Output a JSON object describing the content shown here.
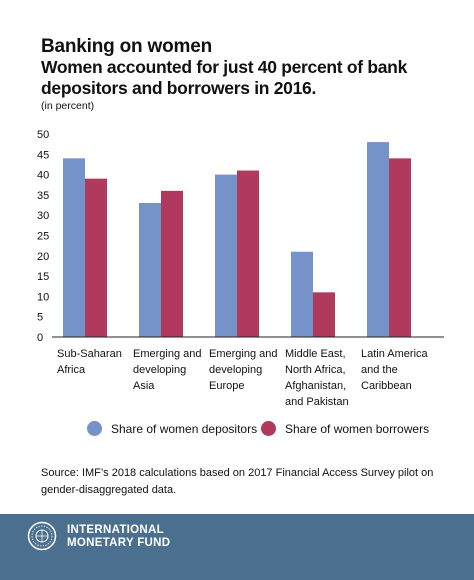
{
  "title": "Banking on women",
  "subtitle": "Women accounted for just 40 percent of bank depositors and borrowers in 2016.",
  "unit_note": "(in percent)",
  "colors": {
    "depositors": "#7592c9",
    "borrowers": "#b03a5e",
    "footer": "#4a6f8f"
  },
  "chart_data": {
    "type": "bar",
    "categories": [
      "Sub-Saharan\nAfrica",
      "Emerging and\ndeveloping\nAsia",
      "Emerging and\ndeveloping\nEurope",
      "Middle East,\nNorth Africa,\nAfghanistan,\nand Pakistan",
      "Latin America\nand the\nCaribbean"
    ],
    "series": [
      {
        "name": "Share of women depositors",
        "values": [
          44,
          33,
          40,
          21,
          48
        ]
      },
      {
        "name": "Share of women borrowers",
        "values": [
          39,
          36,
          41,
          11,
          44
        ]
      }
    ],
    "ylim": [
      0,
      50
    ],
    "yticks": [
      "0",
      "5",
      "10",
      "15",
      "20",
      "25",
      "30",
      "35",
      "40",
      "45",
      "50"
    ],
    "grid": false,
    "legend_position": "bottom"
  },
  "source": "Source: IMF’s 2018 calculations based on 2017 Financial Access Survey pilot on gender-disaggregated data.",
  "footer": {
    "logo_line1": "INTERNATIONAL",
    "logo_line2": "MONETARY FUND",
    "logo_icon": "imf-seal-icon"
  }
}
